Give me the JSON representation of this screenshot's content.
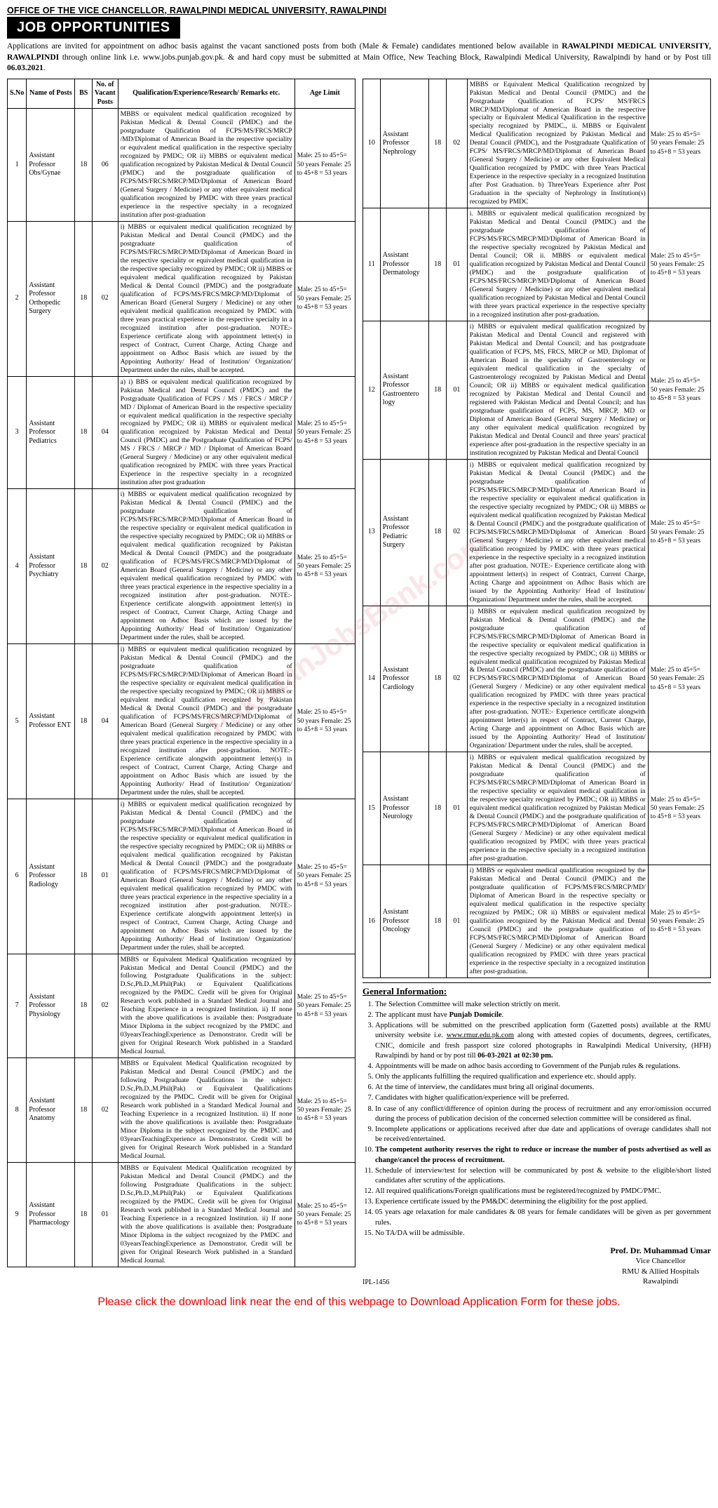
{
  "header": {
    "office_line": "OFFICE OF THE VICE CHANCELLOR, RAWALPINDI MEDICAL UNIVERSITY, RAWALPINDI",
    "banner": "JOB OPPORTUNITIES",
    "intro_html": "Applications are invited for appointment on adhoc basis against the vacant sanctioned posts from both (Male & Female) candidates mentioned below available in <b>RAWALPINDI MEDICAL UNIVERSITY, RAWALPINDI</b> through online link i.e. www.jobs.punjab.gov.pk. & and hard copy must be submitted at Main Office, New Teaching Block, Rawalpindi Medical University, Rawalpindi by hand or by Post till <b>06.03.2021</b>."
  },
  "table": {
    "columns": [
      "S.No",
      "Name of Posts",
      "BS",
      "No. of Vacant Posts",
      "Qualification/Experience/Research/ Remarks etc.",
      "Age Limit"
    ],
    "col_widths_pct": [
      5,
      14,
      5,
      6,
      52,
      18
    ]
  },
  "age_std": "Male: 25 to 45+5= 50 years Female: 25 to 45+8 = 53 years",
  "jobs_left": [
    {
      "sno": "1",
      "post": "Assistant Professor Obs/Gynae",
      "bs": "18",
      "vac": "06",
      "qual": "MBBS or equivalent medical qualification recognized by Pakistan Medical & Dental Council (PMDC) and the postgraduate Qualification of FCPS/MS/FRCS/MRCP /MD/Diplomat of American Board in the respective speciality or equivalent medical qualification in the respective specialty recognized by PMDC;\nOR\nii) MBBS or equivalent medical qualification recognized by Pakistan Medical & Dental Council (PMDC) and the postgraduate qualification of FCPS/MS/FRCS/MRCP/MD/Diplomat of American Board (General Surgery / Medicine) or any other equivalent medical qualification recognized by PMDC with three years practical experience in the respective specialty in a recognized institution after post-graduation"
    },
    {
      "sno": "2",
      "post": "Assistant Professor Orthopedic Surgery",
      "bs": "18",
      "vac": "02",
      "qual": "i) MBBS or equivalent medical qualification recognized by Pakistan Medical and Dental Council (PMDC) and the postgraduate qualification of FCPS/MS/FRCS/MRCP/MD/Diplomat of American Board in the respective speciality or equivalent medical qualification in the respective specialty recognized by PMDC; OR ii) MBBS or equivalent medical qualification recognized by Pakistan Medical & Dental Council (PMDC) and the postgraduate qualification of FCPS/MS/FRCS/MRCP/MD/Diplomat of American Board (General Surgery / Medicine) or any other equivalent medical qualification recognized by PMDC with three years practical experience in the respective specialty in a recognized institution after post-graduation. NOTE:- Experience certificate along with appointment letter(s) in respect of Contract, Current Charge, Acting Charge and appointment on Adhoc Basis which are issued by the Appointing Authority/ Head of Institution/ Organization/ Department under the rules, shall be accepted."
    },
    {
      "sno": "3",
      "post": "Assistant Professor Pediatrics",
      "bs": "18",
      "vac": "04",
      "qual": "a) i) BBS or equivalent medical qualification recognized by Pakistan Medical and Dental Council (PMDC) and the Postgraduate Qualification of FCPS / MS / FRCS / MRCP / MD / Diplomat of American Board in the respective speciality or equivalent medical qualification in the respective specialty recognized by PMDC; OR ii) MBBS or equivalent medical qualification recognized by Pakistan Medical and Dental Council (PMDC) and the Postgraduate Qualification of FCPS/ MS / FRCS / MRCP / MD / Diplomat of American Board (General Surgery / Medicine) or any other equivalent medical qualification recognized by PMDC with three years Practical Experience in the respective specialty in a recognized institution after post graduation"
    },
    {
      "sno": "4",
      "post": "Assistant Professor Psychiatry",
      "bs": "18",
      "vac": "02",
      "qual": "i) MBBS or equivalent medical qualification recognized by Pakistan Medical & Dental Council (PMDC) and the postgraduate qualification of FCPS/MS/FRCS/MRCP/MD/Diplomat of American Board in the respective speciality or equivalent medical qualification in the respective specialty recognized by PMDC; OR ii) MBBS or equivalent medical qualification recognized by Pakistan Medical & Dental Council (PMDC) and the postgraduate qualification of FCPS/MS/FRCS/MRCP/MD/Diplomat of American Board (General Surgery / Medicine) or any other equivalent medical qualification recognized by PMDC with three years practical experience in the respective speciality in a recognized institution after post-graduation. NOTE:- Experience certificate alongwith appointment letter(s) in respect of Contract, Current Charge, Acting Charge and appointment on Adhoc Basis which are issued by the Appointing Authority/ Head of Institution/ Organization/ Department under the rules, shall be accepted."
    },
    {
      "sno": "5",
      "post": "Assistant Professor ENT",
      "bs": "18",
      "vac": "04",
      "qual": "i) MBBS or equivalent medical qualification recognized by Pakistan Medical & Dental Council (PMDC) and the postgraduate qualification of FCPS/MS/FRCS/MRCP/MD/Diplomat of American Board in the respective speciality or equivalent medical qualification in the respective specialty recognized by PMDC; OR ii) MBBS or equivalent medical qualification recognized by Pakistan Medical & Dental Council (PMDC) and the postgraduate qualification of FCPS/MS/FRCS/MRCP/MD/Diplomat of American Board (General Surgery / Medicine) or any other equivalent medical qualification recognized by PMDC with three years practical experience in the respective speciality in a recognized institution after post-graduation. NOTE:- Experience certificate alongwith appointment letter(s) in respect of Contract, Current Charge, Acting Charge and appointment on Adhoc Basis which are issued by the Appointing Authority/ Head of Institution/ Organization/ Department under the rules, shall be accepted."
    },
    {
      "sno": "6",
      "post": "Assistant Professor Radiology",
      "bs": "18",
      "vac": "01",
      "qual": "i) MBBS or equivalent medical qualification recognized by Pakistan Medical & Dental Council (PMDC) and the postgraduate qualification of FCPS/MS/FRCS/MRCP/MD/Diplomat of American Board in the respective speciality or equivalent medical qualification in the respective specialty recognized by PMDC; OR ii) MBBS or equivalent medical qualification recognized by Pakistan Medical & Dental Council (PMDC) and the postgraduate qualification of FCPS/MS/FRCS/MRCP/MD/Diplomat of American Board (General Surgery / Medicine) or any other equivalent medical qualification recognized by PMDC with three years practical experience in the respective speciality in a recognized institution after post-graduation. NOTE:- Experience certificate alongwith appointment letter(s) in respect of Contract, Current Charge, Acting Charge and appointment on Adhoc Basis which are issued by the Appointing Authority/ Head of Institution/ Organization/ Department under the rules, shall be accepted."
    },
    {
      "sno": "7",
      "post": "Assistant Professor Physiology",
      "bs": "18",
      "vac": "02",
      "qual": "MBBS or Equivalent Medical Qualification recognized by Pakistan Medical and Dental Council (PMDC) and the following Postgraduate Qualifications in the subject: D.Sc,Ph.D.,M.Phil(Pak) or Equivalent Qualifications recognized by the PMDC. Credit will be given for Original Research work published in a Standard Medical Journal and Teaching Experience in a recognized Institution.\nii) If none with the above qualifications is available then: Postgraduate Minor Diploma in the subject recognized by the PMDC and 03yearsTeachingExperience as Demonstrator. Credit will be given for Original Research Work published in a Standard Medical Journal."
    },
    {
      "sno": "8",
      "post": "Assistant Professor Anatomy",
      "bs": "18",
      "vac": "02",
      "qual": "MBBS or Equivalent Medical Qualification recognized by Pakistan Medical and Dental Council (PMDC) and the following Postgraduate Qualifications in the subject: D.Sc,Ph.D.,M.Phil(Pak) or Equivalent Qualifications recognized by the PMDC. Credit will be given for Original Research work published in a Standard Medical Journal and Teaching Experience in a recognized Institution.\nii) If none with the above qualifications is available then: Postgraduate Minor Diploma in the subject recognized by the PMDC and 03yearsTeachingExperience as Demonstrator. Credit will be given for Original Research Work published in a Standard Medical Journal."
    },
    {
      "sno": "9",
      "post": "Assistant Professor Pharmacology",
      "bs": "18",
      "vac": "01",
      "qual": "MBBS or Equivalent Medical Qualification recognized by Pakistan Medical and Dental Council (PMDC) and the following Postgraduate Qualifications in the subject: D.Sc,Ph.D.,M.Phil(Pak) or Equivalent Qualifications recognized by the PMDC. Credit will be given for Original Research work published in a Standard Medical Journal and Teaching Experience in a recognized Institution.\nii) If none with the above qualifications is available then: Postgraduate Minor Diploma in the subject recognized by the PMDC and 03yearsTeachingExperience as Demonstrator. Credit will be given for Original Research Work published in a Standard Medical Journal."
    }
  ],
  "jobs_right": [
    {
      "sno": "10",
      "post": "Assistant Professor Nephrology",
      "bs": "18",
      "vac": "02",
      "qual": "MBBS or Equivalent Medical Qualification recognized by Pakistan Medical and Dental Council (PMDC) and the Postgraduate Qualification of FCPS/ MS/FRCS MRCP/MD/Diplomat of American Board in the respective specialty or Equivalent Medical Qualification in the respective specialty recognized by PMDC.,\nii. MBBS or Equivalent Medical Qualification recognized by Pakistan Medical and Dental Council (PMDC), and the Postgraduate Qualification of FCPS/ MS/FRCS/MRCP/MD/Diplomat of American Board (General Surgery / Medicine) or any other Equivalent Medical Qualification recognized by PMDC with three Years Practical Experience in the respective specialty in a recognized Institution after Post Graduation.\nb) ThreeYears Experience after Post Graduation in the specialty of Nephrology in Institution(s) recognized by PMDC"
    },
    {
      "sno": "11",
      "post": "Assistant Professor Dermatology",
      "bs": "18",
      "vac": "01",
      "qual": "i. MBBS or equivalent medical qualification recognized by Pakistan Medical and Dental Council (PMDC) and the postgraduate qualification of FCPS/MS/FRCS/MRCP/MD/Diplomat of American Board in the respective specialty recognized by Pakistan Medical and Dental Council; OR ii. MBBS or equivalent medical qualification recognized by Pakistan Medical and Dental Council (PMDC) and the postgraduate qualification of FCPS/MS/FRCS/MRCP/MD/Diplomat of American Board (General Surgery / Medicine) or any other equivalent medical qualification recognized by Pakistan Medical and Dental Council with three years practical experience in the respective specialty in a recognized institution after post-graduation."
    },
    {
      "sno": "12",
      "post": "Assistant Professor Gastroentero logy",
      "bs": "18",
      "vac": "01",
      "qual": "i) MBBS or equivalent medical qualification recognized by Pakistan Medical and Dental Council and registered with Pakistan Medical and Dental Council; and has postgraduate qualification of FCPS, MS, FRCS, MRCP or MD, Diplomat of American Board in the specialty of Gastroenterology or equivalent medical qualification in the specialty of Gastroenterology recognized by Pakistan Medical and Dental Council; OR ii) MBBS or equivalent medical qualification recognized by Pakistan Medical and Dental Council and registered with Pakistan Medical and Dental Council; and has postgraduate qualification of FCPS, MS, MRCP, MD or Diplomat of American Board (General Surgery / Medicine) or any other equivalent medical qualification recognized by Pakistan Medical and Dental Council and three years' practical experience after post-graduation in the respective specialty in an institution recognized by Pakistan Medical and Dental Council"
    },
    {
      "sno": "13",
      "post": "Assistant Professor Pediatric Surgery",
      "bs": "18",
      "vac": "02",
      "qual": "i) MBBS or equivalent medical qualification recognized by Pakistan Medical & Dental Council (PMDC) and the postgraduate qualification of FCPS/MS/FRCS/MRCP/MD/Diplomat of American Board in the respective speciality or equivalent medical qualification in the respective specialty recognized by PMDC; OR ii) MBBS or equivalent medical qualification recognized by Pakistan Medical & Dental Council (PMDC) and the postgraduate qualification of FCPS/MS/FRCS/MRCP/MD/Diplomat of American Board (General Surgery / Medicine) or any other equivalent medical qualification recognized by PMDC with three years practical experience in the respective specialty in a recognized institution after post graduation. NOTE:- Experience certificate along with appointment letter(s) in respect of Contract, Current Charge, Acting Charge and appointment on Adhoc Basis which are issued by the Appointing Authority/ Head of Institution/ Organization/ Department under the rules, shall be accepted."
    },
    {
      "sno": "14",
      "post": "Assistant Professor Cardiology",
      "bs": "18",
      "vac": "02",
      "qual": "i) MBBS or equivalent medical qualification recognized by Pakistan Medical & Dental Council (PMDC) and the postgraduate qualification of FCPS/MS/FRCS/MRCP/MD/Diplomat of American Board in the respective speciality or equivalent medical qualification in the respective specialty recognized by PMDC; OR ii) MBBS or equivalent medical qualification recognized by Pakistan Medical & Dental Council (PMDC) and the postgraduate qualification of FCPS/MS/FRCS/MRCP/MD/Diplomat of American Board (General Surgery / Medicine) or any other equivalent medical qualification recognized by PMDC with three years practical experience in the respective specialty in a recognized institution after post-graduation. NOTE:- Experience certificate alongwith appointment letter(s) in respect of Contract, Current Charge, Acting Charge and appointment on Adhoc Basis which are issued by the Appointing Authority/ Head of Institution/ Organization/ Department under the rules, shall be accepted."
    },
    {
      "sno": "15",
      "post": "Assistant Professor Neurology",
      "bs": "18",
      "vac": "01",
      "qual": "i) MBBS or equivalent medical qualification recognized by Pakistan Medical & Dental Council (PMDC) and the postgraduate qualification of FCPS/MS/FRCS/MRCP/MD/Diplomat of American Board in the respective speciality or equivalent medical qualification in the respective specialty recognized by PMDC; OR ii) MBBS or equivalent medical qualification recognized by Pakistan Medical & Dental Council (PMDC) and the postgraduate qualification of FCPS/MS/FRCS/MRCP/MD/Diplomat of American Board (General Surgery / Medicine) or any other equivalent medical qualification recognized by PMDC with three years practical experience in the respective specialty in a recognized institution after post-graduation."
    },
    {
      "sno": "16",
      "post": "Assistant Professor Oncology",
      "bs": "18",
      "vac": "01",
      "qual": "i) MBBS or equivalent medical qualification recognized by the Pakistan Medical and Dental Council (PMDC) and the postgraduate qualification of FCPS/MS/FRCS/MRCP/MD/ Diplomat of American Board in the respective specialty or equivalent medical qualification in the respective specialty recognized by PMDC; OR ii) MBBS or equivalent medical qualification recognized by the Pakistan Medical and Dental Council (PMDC) and the postgraduate qualification of FCPS/MS/FRCS/MRCP/MD/Diplomat of American Board (General Surgery / Medicine) or any other equivalent medical qualification recognized by PMDC with three years practical experience in the respective specialty in a recognized institution after post-graduation."
    }
  ],
  "general_info": {
    "title": "General Information:",
    "items": [
      "The Selection Committee will make selection strictly on merit.",
      "The applicant must have <b>Punjab Domicile</b>.",
      "Applications will be submitted on the prescribed application form (Gazetted posts) available at the RMU university website i.e. <u>www.rmur.edu.pk.com</u> along with attested copies of documents, degrees, certificates, CNIC, domicile and fresh passport size colored photographs in Rawalpindi Medical University, (HFH) Rawalpindi by hand or by post till <b>06-03-2021 at 02:30 pm.</b>",
      "Appointments will be made on adhoc basis according to Government of the Punjab rules & regulations.",
      "Only the applicants fulfilling the required qualification and experience etc. should apply.",
      "At the time of interview, the candidates must bring all original documents.",
      "Candidates with higher qualification/experience will be preferred.",
      "In case of any conflict/difference of opinion during the process of recruitment and any error/omission occurred during the process of publication decision of the concerned selection committee will be considered as final.",
      "Incomplete applications or applications received after due date and applications of overage candidates shall not be received/entertained.",
      "<b>The competent authority reserves the right to reduce or increase the number of posts advertised as well as change/cancel the process of recruitment.</b>",
      "Schedule of interview/test for selection will be communicated by post & website to the eligible/short listed candidates after scrutiny of the applications.",
      "All required qualifications/Foreign qualifications must be registered/recognized by PMDC/PMC.",
      "Experience certificate issued by the PM&DC determining the eligibility for the post applied.",
      "05 years age relaxation for male candidates & 08 years for female candidates will be given as per government rules.",
      "No TA/DA will be admissible."
    ]
  },
  "signature": {
    "ipl": "IPL-1456",
    "lines": [
      "Prof. Dr. Muhammad Umar",
      "Vice Chancellor",
      "RMU & Allied Hospitals",
      "Rawalpindi"
    ]
  },
  "footer_red": "Please click the download link near the end of this webpage to Download Application Form for these jobs.",
  "watermark": "PakistanJobsBank.com",
  "colors": {
    "banner_bg": "#000000",
    "banner_fg": "#ffffff",
    "border": "#000000",
    "footer": "#e40000",
    "wm": "rgba(214,88,108,0.15)"
  }
}
